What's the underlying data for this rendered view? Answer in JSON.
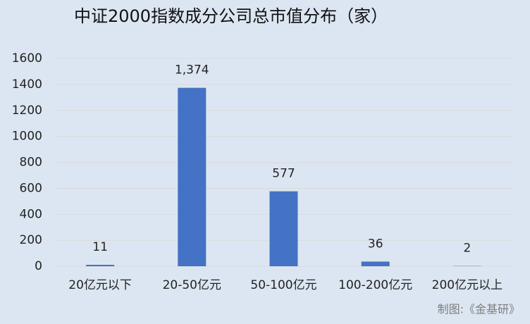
{
  "chart_data": {
    "type": "bar",
    "title": "中证2000指数成分公司总市值分布（家）",
    "categories": [
      "20亿元以下",
      "20-50亿元",
      "50-100亿元",
      "100-200亿元",
      "200亿元以上"
    ],
    "values": [
      11,
      1374,
      577,
      36,
      2
    ],
    "value_labels": [
      "11",
      "1,374",
      "577",
      "36",
      "2"
    ],
    "color": "#4472c4",
    "ylim": [
      0,
      1600
    ],
    "yticks": [
      0,
      200,
      400,
      600,
      800,
      1000,
      1200,
      1400,
      1600
    ],
    "grid": true,
    "source": "制图:《金基研》"
  }
}
